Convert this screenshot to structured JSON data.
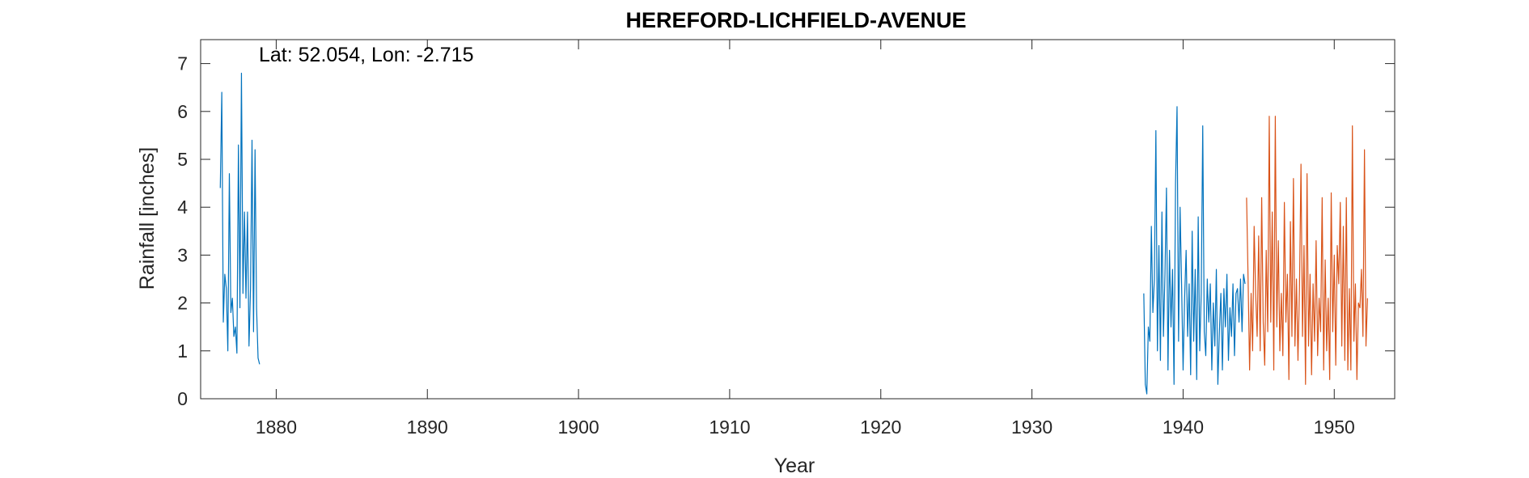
{
  "chart_data": {
    "type": "line",
    "title": "HEREFORD-LICHFIELD-AVENUE",
    "annotation": "Lat: 52.054, Lon: -2.715",
    "xlabel": "Year",
    "ylabel": "Rainfall [inches]",
    "xlim": [
      1875,
      1954
    ],
    "ylim": [
      0,
      7.5
    ],
    "xticks": [
      1880,
      1890,
      1900,
      1910,
      1920,
      1930,
      1940,
      1950
    ],
    "yticks": [
      0,
      1,
      2,
      3,
      4,
      5,
      6,
      7
    ],
    "grid": false,
    "series": [
      {
        "color": "#0072BD",
        "x": [
          1876.3,
          1876.4,
          1876.5,
          1876.6,
          1876.7,
          1876.8,
          1876.9,
          1877.0,
          1877.1,
          1877.2,
          1877.3,
          1877.4,
          1877.5,
          1877.6,
          1877.7,
          1877.8,
          1877.9,
          1878.0,
          1878.1,
          1878.2,
          1878.3,
          1878.4,
          1878.5,
          1878.6,
          1878.7,
          1878.8,
          1878.9,
          1879.0,
          1879.1,
          1879.2,
          1879.3,
          1879.4,
          1879.5
        ],
        "y": [
          4.4,
          6.4,
          1.6,
          2.6,
          2.3,
          1.0,
          4.7,
          1.8,
          2.1,
          1.3,
          1.5,
          0.95,
          5.3,
          1.9,
          6.8,
          2.2,
          3.9,
          2.1,
          3.9,
          1.1,
          2.3,
          5.4,
          1.4,
          5.2,
          1.9,
          0.85,
          0.72,
          null,
          null,
          null,
          null,
          null,
          null
        ]
      },
      {
        "color": "#0072BD",
        "x": [
          1937.4,
          1937.5,
          1937.6,
          1937.7,
          1937.8,
          1937.9,
          1938.0,
          1938.1,
          1938.2,
          1938.3,
          1938.4,
          1938.5,
          1938.6,
          1938.7,
          1938.8,
          1938.9,
          1939.0,
          1939.1,
          1939.2,
          1939.3,
          1939.4,
          1939.5,
          1939.6,
          1939.7,
          1939.8,
          1939.9,
          1940.0,
          1940.1,
          1940.2,
          1940.3,
          1940.4,
          1940.5,
          1940.6,
          1940.7,
          1940.8,
          1940.9,
          1941.0,
          1941.1,
          1941.2,
          1941.3,
          1941.4,
          1941.5,
          1941.6,
          1941.7,
          1941.8,
          1941.9,
          1942.0,
          1942.1,
          1942.2,
          1942.3,
          1942.4,
          1942.5,
          1942.6,
          1942.7,
          1942.8,
          1942.9,
          1943.0,
          1943.1,
          1943.2,
          1943.3,
          1943.4,
          1943.5,
          1943.6,
          1943.7,
          1943.8,
          1943.9,
          1944.0,
          1944.1
        ],
        "y": [
          2.2,
          0.3,
          0.1,
          1.5,
          1.2,
          3.6,
          1.8,
          2.5,
          5.6,
          1.0,
          3.2,
          0.8,
          3.9,
          1.3,
          2.6,
          4.4,
          0.6,
          3.1,
          1.5,
          2.7,
          0.3,
          4.5,
          6.1,
          1.2,
          4.0,
          2.4,
          0.6,
          2.1,
          3.1,
          1.3,
          2.4,
          0.5,
          3.5,
          1.2,
          2.7,
          0.4,
          3.8,
          1.0,
          2.2,
          5.7,
          1.4,
          0.9,
          2.5,
          1.6,
          2.4,
          0.6,
          2.0,
          1.1,
          2.7,
          0.3,
          1.4,
          2.2,
          0.6,
          2.3,
          1.5,
          2.6,
          0.8,
          1.9,
          1.3,
          2.4,
          0.9,
          2.2,
          2.3,
          1.6,
          2.5,
          1.4,
          2.6,
          2.4
        ]
      },
      {
        "color": "#D95319",
        "x": [
          1944.2,
          1944.3,
          1944.4,
          1944.5,
          1944.6,
          1944.7,
          1944.8,
          1944.9,
          1945.0,
          1945.1,
          1945.2,
          1945.3,
          1945.4,
          1945.5,
          1945.6,
          1945.7,
          1945.8,
          1945.9,
          1946.0,
          1946.1,
          1946.2,
          1946.3,
          1946.4,
          1946.5,
          1946.6,
          1946.7,
          1946.8,
          1946.9,
          1947.0,
          1947.1,
          1947.2,
          1947.3,
          1947.4,
          1947.5,
          1947.6,
          1947.7,
          1947.8,
          1947.9,
          1948.0,
          1948.1,
          1948.2,
          1948.3,
          1948.4,
          1948.5,
          1948.6,
          1948.7,
          1948.8,
          1948.9,
          1949.0,
          1949.1,
          1949.2,
          1949.3,
          1949.4,
          1949.5,
          1949.6,
          1949.7,
          1949.8,
          1949.9,
          1950.0,
          1950.1,
          1950.2,
          1950.3,
          1950.4,
          1950.5,
          1950.6,
          1950.7,
          1950.8,
          1950.9,
          1951.0,
          1951.1,
          1951.2,
          1951.3,
          1951.4,
          1951.5,
          1951.6,
          1951.7,
          1951.8,
          1951.9,
          1952.0,
          1952.1,
          1952.2
        ],
        "y": [
          4.2,
          2.5,
          0.6,
          2.2,
          1.0,
          3.6,
          2.2,
          1.3,
          3.4,
          1.0,
          4.2,
          1.6,
          0.7,
          3.1,
          1.4,
          5.9,
          1.6,
          3.9,
          0.6,
          5.9,
          1.5,
          3.3,
          1.0,
          2.2,
          0.9,
          4.1,
          1.6,
          2.6,
          0.4,
          3.7,
          1.3,
          4.6,
          1.1,
          2.5,
          0.8,
          2.3,
          4.9,
          1.3,
          3.2,
          0.3,
          4.7,
          1.1,
          2.6,
          0.5,
          2.4,
          1.2,
          3.3,
          0.9,
          2.1,
          1.4,
          4.2,
          0.6,
          2.9,
          1.0,
          2.1,
          0.4,
          4.3,
          1.4,
          3.0,
          0.7,
          3.2,
          2.4,
          4.1,
          1.1,
          3.6,
          0.8,
          4.2,
          0.6,
          2.3,
          0.6,
          5.7,
          1.2,
          2.4,
          0.4,
          2.0,
          1.9,
          2.7,
          1.3,
          5.2,
          1.1,
          2.1
        ]
      }
    ]
  }
}
